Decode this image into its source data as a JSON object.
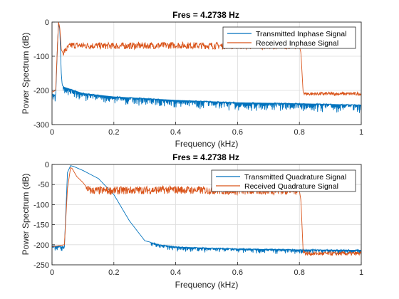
{
  "colors": {
    "transmitted": "#0072BD",
    "received": "#D95319"
  },
  "chart_data": [
    {
      "type": "line",
      "title": "Fres = 4.2738 Hz",
      "xlabel": "Frequency (kHz)",
      "ylabel": "Power Spectrum (dB)",
      "xlim": [
        0,
        1
      ],
      "ylim": [
        -300,
        0
      ],
      "xticks": [
        "0",
        "0.2",
        "0.4",
        "0.6",
        "0.8",
        "1"
      ],
      "yticks": [
        "0",
        "-100",
        "-200",
        "-300"
      ],
      "grid": true,
      "legend_position": "top-right",
      "series": [
        {
          "name": "Transmitted Inphase Signal",
          "color": "#0072BD",
          "x": [
            0,
            0.012,
            0.018,
            0.021,
            0.025,
            0.03,
            0.033,
            0.04,
            0.1,
            0.2,
            0.4,
            0.6,
            0.8,
            1.0
          ],
          "y": [
            -210,
            -215,
            -60,
            -5,
            -20,
            -150,
            -185,
            -190,
            -208,
            -218,
            -228,
            -235,
            -238,
            -242
          ],
          "ripple_below_db": 25
        },
        {
          "name": "Received Inphase Signal",
          "color": "#D95319",
          "x": [
            0,
            0.012,
            0.018,
            0.021,
            0.025,
            0.03,
            0.035,
            0.06,
            0.2,
            0.4,
            0.6,
            0.8,
            0.805,
            0.812,
            0.82,
            1.0
          ],
          "y": [
            -205,
            -200,
            -60,
            0,
            -15,
            -80,
            -90,
            -68,
            -70,
            -68,
            -70,
            -70,
            -90,
            -205,
            -210,
            -210
          ],
          "ripple_db": 10
        }
      ]
    },
    {
      "type": "line",
      "title": "Fres = 4.2738 Hz",
      "xlabel": "Frequency (kHz)",
      "ylabel": "Power Spectrum (dB)",
      "xlim": [
        0,
        1
      ],
      "ylim": [
        -250,
        0
      ],
      "xticks": [
        "0",
        "0.2",
        "0.4",
        "0.6",
        "0.8",
        "1"
      ],
      "yticks": [
        "0",
        "-50",
        "-100",
        "-150",
        "-200",
        "-250"
      ],
      "grid": true,
      "legend_position": "top-right",
      "series": [
        {
          "name": "Transmitted Quadrature Signal",
          "color": "#0072BD",
          "x": [
            0,
            0.04,
            0.05,
            0.06,
            0.07,
            0.1,
            0.15,
            0.2,
            0.25,
            0.3,
            0.35,
            0.4,
            0.6,
            0.8,
            1.0
          ],
          "y": [
            -202,
            -205,
            -20,
            -3,
            -5,
            -15,
            -35,
            -75,
            -140,
            -190,
            -200,
            -205,
            -210,
            -212,
            -213
          ],
          "ripple_below_db": 12
        },
        {
          "name": "Received Quadrature Signal",
          "color": "#D95319",
          "x": [
            0,
            0.04,
            0.05,
            0.06,
            0.065,
            0.08,
            0.1,
            0.12,
            0.2,
            0.4,
            0.6,
            0.8,
            0.805,
            0.812,
            0.82,
            1.0
          ],
          "y": [
            -205,
            -200,
            -60,
            -8,
            -10,
            -30,
            -45,
            -65,
            -65,
            -63,
            -66,
            -65,
            -90,
            -215,
            -222,
            -222
          ],
          "ripple_db": 10
        }
      ]
    }
  ]
}
